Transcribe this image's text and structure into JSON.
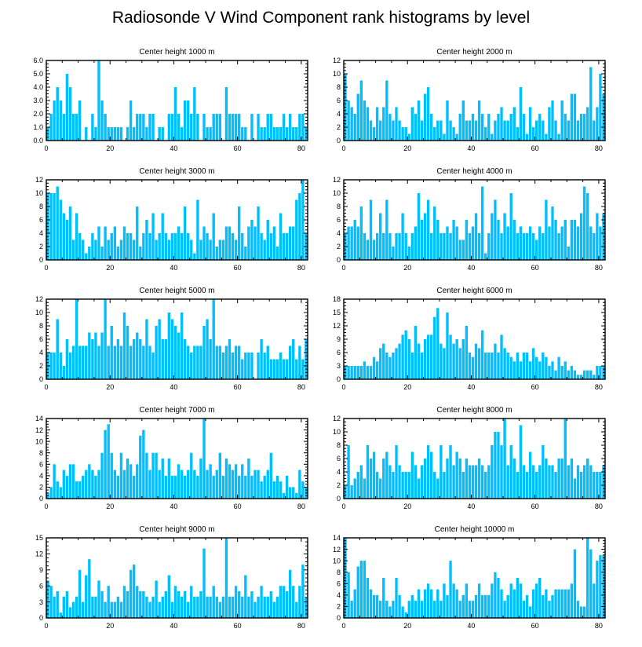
{
  "title": "Radiosonde V Wind Component rank histograms by level",
  "bar_color": "#00BFFF",
  "chart_data": [
    {
      "type": "bar",
      "title": "Center height 1000 m",
      "xlim": [
        0,
        82
      ],
      "ylim": [
        0,
        6
      ],
      "xticks": [
        0,
        20,
        40,
        60,
        80
      ],
      "xtick_labels": [
        "0",
        "20",
        "40",
        "60",
        "80"
      ],
      "yticks": [
        0,
        1,
        2,
        3,
        4,
        5,
        6
      ],
      "ytick_labels": [
        "0.0",
        "1.0",
        "2.0",
        "3.0",
        "4.0",
        "5.0",
        "6.0"
      ],
      "values": [
        1,
        2,
        3,
        4,
        3,
        2,
        5,
        4,
        2,
        2,
        3,
        0,
        1,
        0,
        2,
        1,
        6,
        3,
        2,
        1,
        1,
        1,
        1,
        1,
        0,
        1,
        3,
        1,
        2,
        2,
        2,
        1,
        2,
        2,
        0,
        1,
        1,
        0,
        2,
        2,
        4,
        2,
        1,
        3,
        3,
        2,
        4,
        2,
        0,
        2,
        1,
        1,
        2,
        2,
        2,
        0,
        4,
        2,
        2,
        2,
        2,
        1,
        1,
        0,
        2,
        0,
        2,
        1,
        1,
        2,
        2,
        1,
        1,
        1,
        2,
        1,
        2,
        1,
        1,
        2,
        2,
        1
      ]
    },
    {
      "type": "bar",
      "title": "Center height 2000 m",
      "xlim": [
        0,
        82
      ],
      "ylim": [
        0,
        12
      ],
      "xticks": [
        0,
        20,
        40,
        60,
        80
      ],
      "xtick_labels": [
        "0",
        "20",
        "40",
        "60",
        "80"
      ],
      "yticks": [
        0,
        2,
        4,
        6,
        8,
        10,
        12
      ],
      "ytick_labels": [
        "0",
        "2",
        "4",
        "6",
        "8",
        "10",
        "12"
      ],
      "values": [
        10,
        6,
        5,
        4,
        7,
        9,
        6,
        5,
        3,
        2,
        5,
        3,
        5,
        9,
        4,
        3,
        5,
        3,
        2,
        2,
        1,
        5,
        4,
        6,
        3,
        7,
        8,
        4,
        2,
        3,
        3,
        1,
        6,
        3,
        2,
        1,
        4,
        6,
        3,
        3,
        4,
        3,
        6,
        4,
        2,
        4,
        1,
        3,
        4,
        5,
        3,
        3,
        4,
        5,
        2,
        8,
        4,
        1,
        5,
        2,
        3,
        4,
        3,
        1,
        5,
        6,
        3,
        1,
        6,
        4,
        3,
        7,
        7,
        3,
        4,
        4,
        5,
        11,
        3,
        5,
        10,
        7
      ]
    },
    {
      "type": "bar",
      "title": "Center height 3000 m",
      "xlim": [
        0,
        82
      ],
      "ylim": [
        0,
        12
      ],
      "xticks": [
        0,
        20,
        40,
        60,
        80
      ],
      "xtick_labels": [
        "0",
        "20",
        "40",
        "60",
        "80"
      ],
      "yticks": [
        0,
        2,
        4,
        6,
        8,
        10,
        12
      ],
      "ytick_labels": [
        "0",
        "2",
        "4",
        "6",
        "8",
        "10",
        "12"
      ],
      "values": [
        10,
        10,
        10,
        11,
        9,
        7,
        6,
        8,
        3,
        7,
        4,
        3,
        1,
        2,
        4,
        3,
        5,
        2,
        5,
        3,
        4,
        5,
        2,
        3,
        5,
        4,
        4,
        3,
        8,
        2,
        4,
        6,
        4,
        7,
        3,
        4,
        7,
        4,
        3,
        4,
        4,
        5,
        4,
        8,
        4,
        3,
        1,
        9,
        3,
        5,
        4,
        3,
        7,
        2,
        3,
        3,
        5,
        5,
        4,
        3,
        8,
        4,
        2,
        5,
        6,
        5,
        8,
        4,
        3,
        6,
        4,
        5,
        2,
        7,
        4,
        4,
        5,
        5,
        9,
        10,
        12,
        4
      ]
    },
    {
      "type": "bar",
      "title": "Center height 4000 m",
      "xlim": [
        0,
        82
      ],
      "ylim": [
        0,
        12
      ],
      "xticks": [
        0,
        20,
        40,
        60,
        80
      ],
      "xtick_labels": [
        "0",
        "20",
        "40",
        "60",
        "80"
      ],
      "yticks": [
        0,
        2,
        4,
        6,
        8,
        10,
        12
      ],
      "ytick_labels": [
        "0",
        "2",
        "4",
        "6",
        "8",
        "10",
        "12"
      ],
      "values": [
        4,
        5,
        5,
        6,
        5,
        8,
        4,
        3,
        9,
        3,
        4,
        7,
        4,
        9,
        4,
        2,
        4,
        4,
        7,
        4,
        2,
        4,
        5,
        10,
        6,
        7,
        9,
        4,
        8,
        6,
        4,
        4,
        5,
        4,
        6,
        5,
        3,
        3,
        6,
        4,
        5,
        7,
        4,
        11,
        1,
        4,
        7,
        9,
        6,
        4,
        7,
        5,
        10,
        6,
        4,
        5,
        4,
        4,
        5,
        4,
        3,
        5,
        4,
        9,
        5,
        8,
        6,
        4,
        5,
        6,
        2,
        6,
        6,
        5,
        7,
        11,
        10,
        5,
        4,
        7,
        5,
        7
      ]
    },
    {
      "type": "bar",
      "title": "Center height 5000 m",
      "xlim": [
        0,
        82
      ],
      "ylim": [
        0,
        12
      ],
      "xticks": [
        0,
        20,
        40,
        60,
        80
      ],
      "xtick_labels": [
        "0",
        "20",
        "40",
        "60",
        "80"
      ],
      "yticks": [
        0,
        2,
        4,
        6,
        8,
        10,
        12
      ],
      "ytick_labels": [
        "0",
        "2",
        "4",
        "6",
        "8",
        "10",
        "12"
      ],
      "values": [
        4,
        4,
        4,
        9,
        4,
        2,
        6,
        4,
        5,
        12,
        5,
        5,
        5,
        7,
        6,
        7,
        5,
        7,
        12,
        5,
        8,
        5,
        6,
        5,
        10,
        8,
        5,
        6,
        7,
        6,
        5,
        9,
        5,
        4,
        8,
        9,
        6,
        6,
        10,
        9,
        8,
        7,
        10,
        6,
        5,
        4,
        5,
        5,
        5,
        8,
        9,
        6,
        12,
        5,
        5,
        4,
        5,
        6,
        4,
        5,
        5,
        3,
        4,
        4,
        4,
        0,
        4,
        6,
        4,
        5,
        3,
        3,
        3,
        4,
        3,
        3,
        5,
        6,
        3,
        5,
        3,
        6
      ]
    },
    {
      "type": "bar",
      "title": "Center height 6000 m",
      "xlim": [
        0,
        82
      ],
      "ylim": [
        0,
        18
      ],
      "xticks": [
        0,
        20,
        40,
        60,
        80
      ],
      "xtick_labels": [
        "0",
        "20",
        "40",
        "60",
        "80"
      ],
      "yticks": [
        0,
        3,
        6,
        9,
        12,
        15,
        18
      ],
      "ytick_labels": [
        "0",
        "3",
        "6",
        "9",
        "12",
        "15",
        "18"
      ],
      "values": [
        3,
        3,
        3,
        3,
        3,
        3,
        4,
        3,
        3,
        5,
        4,
        7,
        8,
        6,
        5,
        6,
        7,
        8,
        10,
        11,
        9,
        6,
        12,
        8,
        6,
        9,
        10,
        10,
        14,
        16,
        8,
        7,
        15,
        10,
        8,
        9,
        7,
        9,
        12,
        6,
        5,
        8,
        7,
        11,
        6,
        6,
        6,
        8,
        6,
        10,
        7,
        6,
        5,
        4,
        6,
        4,
        6,
        6,
        4,
        7,
        5,
        4,
        6,
        5,
        3,
        4,
        2,
        5,
        3,
        4,
        2,
        3,
        2,
        1,
        1,
        2,
        2,
        2,
        1,
        3,
        3,
        3
      ]
    },
    {
      "type": "bar",
      "title": "Center height 7000 m",
      "xlim": [
        0,
        82
      ],
      "ylim": [
        0,
        14
      ],
      "xticks": [
        0,
        20,
        40,
        60,
        80
      ],
      "xtick_labels": [
        "0",
        "20",
        "40",
        "60",
        "80"
      ],
      "yticks": [
        0,
        2,
        4,
        6,
        8,
        10,
        12,
        14
      ],
      "ytick_labels": [
        "0",
        "2",
        "4",
        "6",
        "8",
        "10",
        "12",
        "14"
      ],
      "values": [
        1,
        2,
        6,
        3,
        2,
        5,
        4,
        6,
        6,
        3,
        3,
        4,
        5,
        6,
        5,
        4,
        5,
        8,
        12,
        13,
        8,
        5,
        4,
        8,
        5,
        7,
        6,
        4,
        6,
        11,
        12,
        8,
        5,
        8,
        8,
        5,
        7,
        4,
        7,
        4,
        4,
        6,
        5,
        4,
        5,
        8,
        5,
        4,
        7,
        14,
        5,
        6,
        4,
        5,
        8,
        4,
        7,
        6,
        5,
        6,
        4,
        6,
        4,
        7,
        4,
        5,
        5,
        3,
        4,
        5,
        8,
        3,
        4,
        3,
        1,
        4,
        2,
        2,
        1,
        5,
        3,
        2
      ]
    },
    {
      "type": "bar",
      "title": "Center height 8000 m",
      "xlim": [
        0,
        82
      ],
      "ylim": [
        0,
        12
      ],
      "xticks": [
        0,
        20,
        40,
        60,
        80
      ],
      "xtick_labels": [
        "0",
        "20",
        "40",
        "60",
        "80"
      ],
      "yticks": [
        0,
        2,
        4,
        6,
        8,
        10,
        12
      ],
      "ytick_labels": [
        "0",
        "2",
        "4",
        "6",
        "8",
        "10",
        "12"
      ],
      "values": [
        2,
        8,
        2,
        3,
        4,
        5,
        3,
        8,
        6,
        7,
        4,
        3,
        6,
        7,
        5,
        4,
        8,
        5,
        4,
        4,
        4,
        7,
        5,
        3,
        5,
        6,
        8,
        7,
        4,
        3,
        8,
        4,
        6,
        8,
        5,
        7,
        6,
        4,
        6,
        5,
        5,
        5,
        6,
        5,
        4,
        5,
        8,
        10,
        10,
        8,
        12,
        5,
        8,
        6,
        4,
        11,
        5,
        4,
        7,
        5,
        4,
        5,
        8,
        6,
        5,
        5,
        4,
        6,
        6,
        12,
        5,
        6,
        3,
        5,
        4,
        5,
        6,
        5,
        4,
        4,
        4,
        5
      ]
    },
    {
      "type": "bar",
      "title": "Center height 9000 m",
      "xlim": [
        0,
        82
      ],
      "ylim": [
        0,
        15
      ],
      "xticks": [
        0,
        20,
        40,
        60,
        80
      ],
      "xtick_labels": [
        "0",
        "20",
        "40",
        "60",
        "80"
      ],
      "yticks": [
        0,
        3,
        6,
        9,
        12,
        15
      ],
      "ytick_labels": [
        "0",
        "3",
        "6",
        "9",
        "12",
        "15"
      ],
      "values": [
        7,
        6,
        4,
        5,
        1,
        4,
        5,
        2,
        3,
        4,
        9,
        3,
        8,
        11,
        4,
        4,
        7,
        5,
        3,
        6,
        3,
        3,
        4,
        3,
        6,
        5,
        9,
        10,
        6,
        5,
        5,
        4,
        3,
        4,
        7,
        3,
        4,
        5,
        8,
        3,
        6,
        5,
        4,
        5,
        3,
        6,
        4,
        4,
        5,
        13,
        4,
        4,
        6,
        4,
        3,
        4,
        15,
        4,
        4,
        6,
        5,
        4,
        8,
        4,
        5,
        3,
        4,
        6,
        4,
        4,
        5,
        3,
        4,
        6,
        6,
        5,
        9,
        6,
        3,
        6,
        10,
        4
      ]
    },
    {
      "type": "bar",
      "title": "Center height 10000 m",
      "xlim": [
        0,
        82
      ],
      "ylim": [
        0,
        14
      ],
      "xticks": [
        0,
        20,
        40,
        60,
        80
      ],
      "xtick_labels": [
        "0",
        "20",
        "40",
        "60",
        "80"
      ],
      "yticks": [
        0,
        2,
        4,
        6,
        8,
        10,
        12,
        14
      ],
      "ytick_labels": [
        "0",
        "2",
        "4",
        "6",
        "8",
        "10",
        "12",
        "14"
      ],
      "values": [
        14,
        8,
        3,
        5,
        9,
        10,
        10,
        7,
        5,
        4,
        4,
        3,
        7,
        3,
        2,
        3,
        7,
        4,
        2,
        1,
        3,
        4,
        3,
        5,
        3,
        5,
        6,
        5,
        3,
        5,
        3,
        6,
        4,
        10,
        6,
        5,
        3,
        4,
        6,
        3,
        3,
        4,
        6,
        4,
        4,
        4,
        6,
        8,
        7,
        5,
        3,
        4,
        6,
        5,
        7,
        6,
        3,
        4,
        2,
        5,
        6,
        7,
        4,
        5,
        3,
        4,
        5,
        5,
        5,
        5,
        5,
        6,
        12,
        3,
        2,
        2,
        14,
        12,
        6,
        10,
        11,
        11
      ]
    }
  ]
}
